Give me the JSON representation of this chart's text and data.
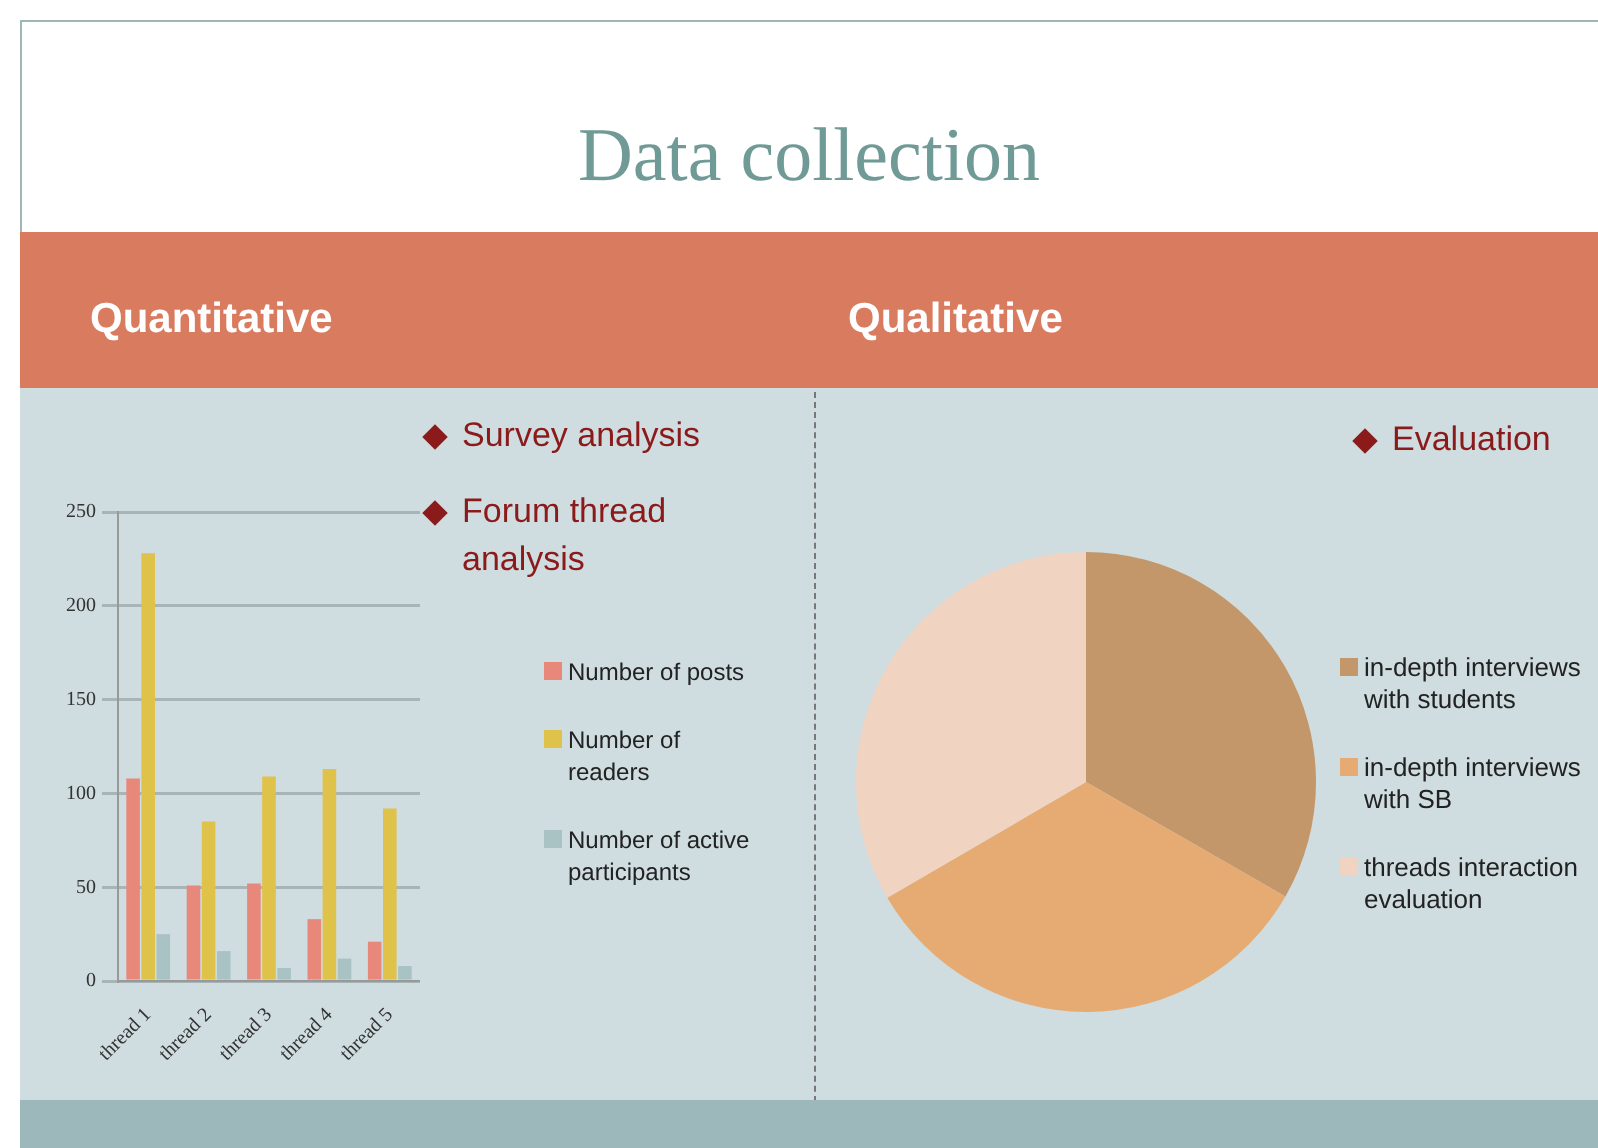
{
  "chart_data": [
    {
      "type": "other",
      "title": "Data collection"
    },
    {
      "type": "bar",
      "title": "Quantitative",
      "annotations": [
        "Survey analysis",
        "Forum thread analysis"
      ],
      "categories": [
        "thread 1",
        "thread 2",
        "thread 3",
        "thread 4",
        "thread 5"
      ],
      "series": [
        {
          "name": "Number of posts",
          "color": "#e8887a",
          "values": [
            108,
            51,
            52,
            33,
            21
          ]
        },
        {
          "name": "Number of readers",
          "color": "#dfc24a",
          "values": [
            228,
            85,
            109,
            113,
            92
          ]
        },
        {
          "name": "Number of active participants",
          "color": "#a9c3c4",
          "values": [
            25,
            16,
            7,
            12,
            8
          ]
        }
      ],
      "ylim": [
        0,
        250
      ],
      "yticks": [
        0,
        50,
        100,
        150,
        200,
        250
      ],
      "grid": "y",
      "legend": "right"
    },
    {
      "type": "pie",
      "title": "Qualitative",
      "annotations": [
        "Evaluation"
      ],
      "categories": [
        "in-depth interviews with students",
        "in-depth interviews with SB",
        "threads interaction evaluation"
      ],
      "values": [
        33.3,
        33.3,
        33.4
      ],
      "colors": [
        "#c4976a",
        "#e5ab72",
        "#f1d3c2"
      ],
      "legend": "right"
    }
  ]
}
